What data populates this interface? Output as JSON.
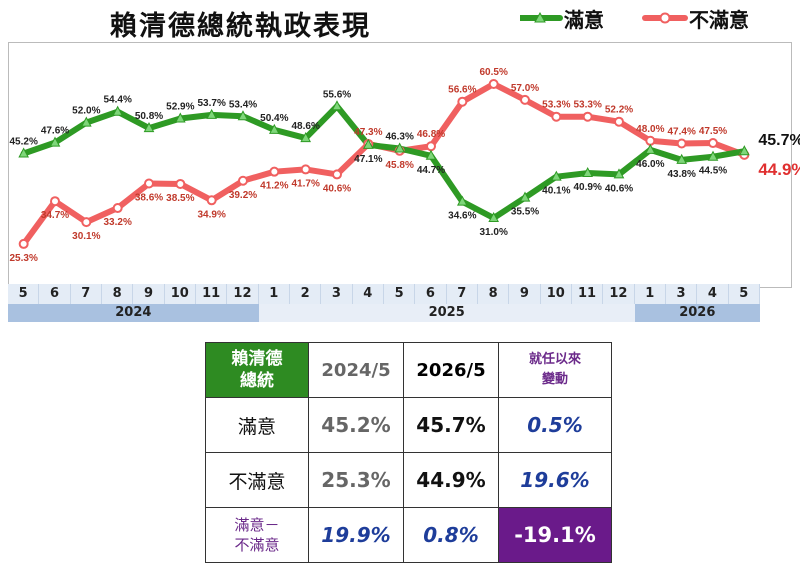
{
  "title": "賴清德總統執政表現",
  "legend": {
    "satisfied": "滿意",
    "unsatisfied": "不滿意"
  },
  "colors": {
    "satisfied": "#2e9a24",
    "unsatisfied": "#f06060",
    "tableHeader": "#2e8b22",
    "purple": "#6a1a8a",
    "blue": "#1e3d9a"
  },
  "chart_data": {
    "type": "line",
    "categories": [
      "5",
      "6",
      "7",
      "8",
      "9",
      "10",
      "11",
      "12",
      "1",
      "2",
      "3",
      "4",
      "5",
      "6",
      "7",
      "8",
      "9",
      "10",
      "11",
      "12",
      "1",
      "3",
      "4",
      "5"
    ],
    "years": [
      {
        "label": "2024",
        "start": 0,
        "end": 7
      },
      {
        "label": "2025",
        "start": 8,
        "end": 19
      },
      {
        "label": "2026",
        "start": 20,
        "end": 23
      }
    ],
    "series": [
      {
        "name": "滿意",
        "values": [
          45.2,
          47.6,
          52.0,
          54.4,
          50.8,
          52.9,
          53.7,
          53.4,
          50.4,
          48.6,
          55.6,
          47.1,
          46.3,
          44.7,
          34.6,
          31.0,
          35.5,
          40.1,
          40.9,
          40.6,
          46.0,
          43.8,
          44.5,
          45.7
        ]
      },
      {
        "name": "不滿意",
        "values": [
          25.3,
          34.7,
          30.1,
          33.2,
          38.6,
          38.5,
          34.9,
          39.2,
          41.2,
          41.7,
          40.6,
          47.3,
          45.8,
          46.8,
          56.6,
          60.5,
          57.0,
          53.3,
          53.3,
          52.2,
          48.0,
          47.4,
          47.5,
          44.9
        ]
      }
    ],
    "labels": {
      "satisfied": [
        "45.2%",
        "47.6%",
        "52.0%",
        "54.4%",
        "50.8%",
        "52.9%",
        "53.7%",
        "53.4%",
        "50.4%",
        "48.6%",
        "55.6%",
        "47.1%",
        "46.3%",
        "44.7%",
        "34.6%",
        "31.0%",
        "35.5%",
        "40.1%",
        "40.9%",
        "40.6%",
        "46.0%",
        "43.8%",
        "44.5%",
        "45.7%"
      ],
      "unsatisfied": [
        "25.3%",
        "34.7%",
        "30.1%",
        "33.2%",
        "38.6%",
        "38.5%",
        "34.9%",
        "39.2%",
        "41.2%",
        "41.7%",
        "40.6%",
        "47.3%",
        "45.8%",
        "46.8%",
        "56.6%",
        "60.5%",
        "57.0%",
        "53.3%",
        "53.3%",
        "52.2%",
        "48.0%",
        "47.4%",
        "47.5%",
        "44.9%"
      ]
    },
    "ylim": [
      20,
      65
    ]
  },
  "table": {
    "corner": [
      "賴清德",
      "總統"
    ],
    "col1": "2024/5",
    "col2": "2026/5",
    "col3": [
      "就任以來",
      "變動"
    ],
    "rows": [
      {
        "label": [
          "滿意"
        ],
        "v1": "45.2%",
        "v2": "45.7%",
        "v3": "0.5%"
      },
      {
        "label": [
          "不滿意"
        ],
        "v1": "25.3%",
        "v2": "44.9%",
        "v3": "19.6%"
      },
      {
        "label": [
          "滿意－",
          "不滿意"
        ],
        "v1": "19.9%",
        "v2": "0.8%",
        "v3": "-19.1%"
      }
    ]
  }
}
